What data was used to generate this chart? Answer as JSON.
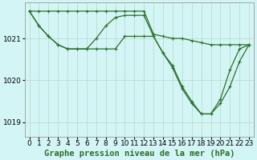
{
  "bg_color": "#d4f5f5",
  "grid_color": "#bbddcc",
  "line_color": "#2d6e2d",
  "marker": "+",
  "title": "Graphe pression niveau de la mer (hPa)",
  "xlim": [
    -0.5,
    23.5
  ],
  "ylim": [
    1018.65,
    1021.85
  ],
  "yticks": [
    1019,
    1020,
    1021
  ],
  "xticks": [
    0,
    1,
    2,
    3,
    4,
    5,
    6,
    7,
    8,
    9,
    10,
    11,
    12,
    13,
    14,
    15,
    16,
    17,
    18,
    19,
    20,
    21,
    22,
    23
  ],
  "line1_x": [
    0,
    1,
    2,
    3,
    4,
    5,
    6,
    7,
    8,
    9,
    10,
    11,
    12,
    13,
    14,
    15,
    16,
    17,
    18,
    19,
    20,
    21,
    22,
    23
  ],
  "line1_y": [
    1021.65,
    1021.65,
    1021.65,
    1021.65,
    1021.65,
    1021.65,
    1021.65,
    1021.65,
    1021.65,
    1021.65,
    1021.65,
    1021.65,
    1021.65,
    1021.1,
    1021.05,
    1021.0,
    1021.0,
    1020.95,
    1020.9,
    1020.85,
    1020.85,
    1020.85,
    1020.85,
    1020.85
  ],
  "line2_x": [
    0,
    1,
    2,
    3,
    4,
    5,
    6,
    7,
    8,
    9,
    10,
    11,
    12,
    13,
    14,
    15,
    16,
    17,
    18,
    19,
    20,
    21,
    22,
    23
  ],
  "line2_y": [
    1021.65,
    1021.3,
    1021.05,
    1020.85,
    1020.75,
    1020.75,
    1020.75,
    1021.0,
    1021.3,
    1021.5,
    1021.55,
    1021.55,
    1021.55,
    1021.05,
    1020.65,
    1020.35,
    1019.85,
    1019.5,
    1019.2,
    1019.2,
    1019.55,
    1020.25,
    1020.75,
    1020.85
  ],
  "line3_x": [
    0,
    1,
    2,
    3,
    4,
    5,
    6,
    7,
    8,
    9,
    10,
    11,
    12,
    13,
    14,
    15,
    16,
    17,
    18,
    19,
    20,
    21,
    22,
    23
  ],
  "line3_y": [
    1021.65,
    1021.3,
    1021.05,
    1020.85,
    1020.75,
    1020.75,
    1020.75,
    1020.75,
    1020.75,
    1020.75,
    1021.05,
    1021.05,
    1021.05,
    1021.05,
    1020.65,
    1020.3,
    1019.8,
    1019.45,
    1019.2,
    1019.2,
    1019.45,
    1019.85,
    1020.45,
    1020.85
  ],
  "title_fontsize": 7.5,
  "tick_fontsize": 6.5,
  "lw": 0.9,
  "ms": 3
}
